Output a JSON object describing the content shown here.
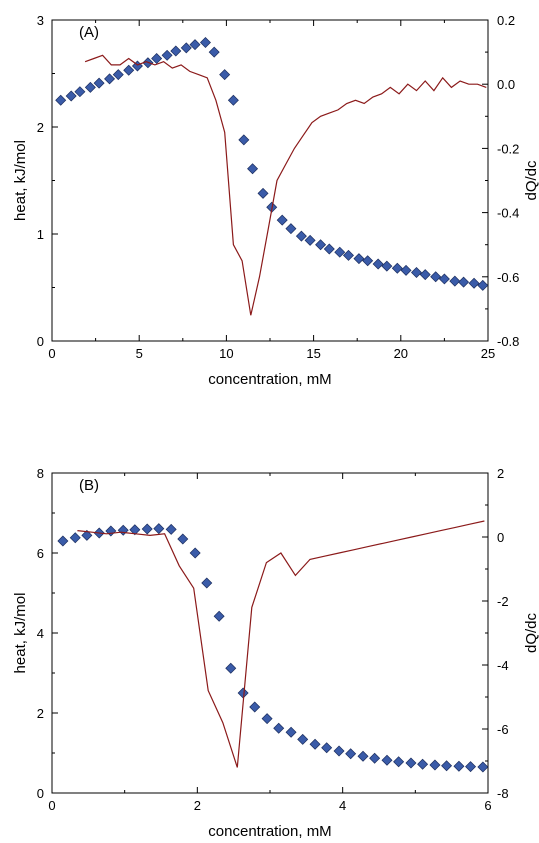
{
  "colors": {
    "marker": "#3a5ba8",
    "marker_edge": "#1c2e5e",
    "line": "#8b1a1a",
    "axis": "#000000"
  },
  "chart_data": [
    {
      "type": "scatter",
      "panel_label": "(A)",
      "xlabel": "concentration, mM",
      "ylabel": "heat, kJ/mol",
      "y2label": "dQ/dc",
      "xlim": [
        0,
        25
      ],
      "ylim": [
        0,
        3
      ],
      "y2lim": [
        -0.8,
        0.2
      ],
      "xticks": [
        "0",
        "5",
        "10",
        "15",
        "20",
        "25"
      ],
      "yticks": [
        "0",
        "1",
        "2",
        "3"
      ],
      "y2ticks": [
        "-0.8",
        "-0.6",
        "-0.4",
        "-0.2",
        "0.0",
        "0.2"
      ],
      "series": [
        {
          "kind": "markers",
          "axis": "left",
          "x": [
            0.5,
            1.1,
            1.6,
            2.2,
            2.7,
            3.3,
            3.8,
            4.4,
            4.9,
            5.5,
            6.0,
            6.6,
            7.1,
            7.7,
            8.2,
            8.8,
            9.3,
            9.9,
            10.4,
            11.0,
            11.5,
            12.1,
            12.6,
            13.2,
            13.7,
            14.3,
            14.8,
            15.4,
            15.9,
            16.5,
            17.0,
            17.6,
            18.1,
            18.7,
            19.2,
            19.8,
            20.3,
            20.9,
            21.4,
            22.0,
            22.5,
            23.1,
            23.6,
            24.2,
            24.7
          ],
          "y": [
            2.25,
            2.29,
            2.33,
            2.37,
            2.41,
            2.45,
            2.49,
            2.53,
            2.57,
            2.6,
            2.64,
            2.67,
            2.71,
            2.74,
            2.77,
            2.79,
            2.7,
            2.49,
            2.25,
            1.88,
            1.61,
            1.38,
            1.25,
            1.13,
            1.05,
            0.98,
            0.94,
            0.9,
            0.86,
            0.83,
            0.8,
            0.77,
            0.75,
            0.72,
            0.7,
            0.68,
            0.66,
            0.64,
            0.62,
            0.6,
            0.58,
            0.56,
            0.55,
            0.54,
            0.52
          ]
        },
        {
          "kind": "line",
          "axis": "right",
          "x": [
            1.9,
            2.4,
            2.9,
            3.4,
            3.9,
            4.4,
            4.9,
            5.4,
            5.9,
            6.4,
            6.9,
            7.4,
            7.9,
            8.4,
            8.9,
            9.4,
            9.9,
            10.4,
            10.9,
            11.4,
            11.9,
            12.4,
            12.9,
            13.4,
            13.9,
            14.4,
            14.9,
            15.4,
            15.9,
            16.4,
            16.9,
            17.4,
            17.9,
            18.4,
            18.9,
            19.4,
            19.9,
            20.4,
            20.9,
            21.4,
            21.9,
            22.4,
            22.9,
            23.4,
            23.9,
            24.4,
            24.9
          ],
          "y": [
            0.07,
            0.08,
            0.09,
            0.06,
            0.06,
            0.08,
            0.06,
            0.07,
            0.06,
            0.07,
            0.05,
            0.06,
            0.04,
            0.03,
            0.02,
            -0.05,
            -0.15,
            -0.5,
            -0.55,
            -0.72,
            -0.6,
            -0.45,
            -0.3,
            -0.25,
            -0.2,
            -0.16,
            -0.12,
            -0.1,
            -0.09,
            -0.08,
            -0.06,
            -0.05,
            -0.06,
            -0.04,
            -0.03,
            -0.01,
            -0.03,
            0.0,
            -0.02,
            0.01,
            -0.02,
            0.02,
            -0.01,
            0.01,
            0.0,
            0.0,
            -0.01
          ]
        }
      ]
    },
    {
      "type": "scatter",
      "panel_label": "(B)",
      "xlabel": "concentration, mM",
      "ylabel": "heat, kJ/mol",
      "y2label": "dQ/dc",
      "xlim": [
        0,
        6
      ],
      "ylim": [
        0,
        8
      ],
      "y2lim": [
        -8,
        2
      ],
      "xticks": [
        "0",
        "2",
        "4",
        "6"
      ],
      "yticks": [
        "0",
        "2",
        "4",
        "6",
        "8"
      ],
      "y2ticks": [
        "-8",
        "-6",
        "-4",
        "-2",
        "0",
        "2"
      ],
      "series": [
        {
          "kind": "markers",
          "axis": "left",
          "x": [
            0.15,
            0.32,
            0.48,
            0.65,
            0.81,
            0.98,
            1.14,
            1.31,
            1.47,
            1.64,
            1.8,
            1.97,
            2.13,
            2.3,
            2.46,
            2.63,
            2.79,
            2.96,
            3.12,
            3.29,
            3.45,
            3.62,
            3.78,
            3.95,
            4.11,
            4.28,
            4.44,
            4.61,
            4.77,
            4.94,
            5.1,
            5.27,
            5.43,
            5.6,
            5.76,
            5.93
          ],
          "y": [
            6.3,
            6.38,
            6.44,
            6.5,
            6.55,
            6.57,
            6.58,
            6.6,
            6.61,
            6.59,
            6.35,
            6.0,
            5.25,
            4.42,
            3.12,
            2.5,
            2.15,
            1.86,
            1.62,
            1.52,
            1.34,
            1.22,
            1.13,
            1.05,
            0.98,
            0.92,
            0.87,
            0.82,
            0.78,
            0.75,
            0.72,
            0.7,
            0.68,
            0.67,
            0.66,
            0.65
          ]
        },
        {
          "kind": "line",
          "axis": "right",
          "x": [
            0.35,
            0.55,
            0.75,
            0.95,
            1.15,
            1.35,
            1.55,
            1.75,
            1.95,
            2.15,
            2.35,
            2.55,
            2.75,
            2.95,
            3.15,
            3.35,
            3.55,
            3.75,
            3.95,
            4.15,
            4.35,
            4.55,
            4.75,
            4.95,
            5.15,
            5.35,
            5.55,
            5.75,
            5.95
          ],
          "y": [
            0.2,
            0.15,
            0.1,
            0.15,
            0.1,
            0.05,
            0.1,
            -0.9,
            -1.6,
            -4.8,
            -5.8,
            -7.2,
            -2.2,
            -0.8,
            -0.5,
            -1.2,
            -0.7,
            -0.6,
            -0.5,
            -0.4,
            -0.3,
            -0.2,
            -0.1,
            0.0,
            0.1,
            0.2,
            0.3,
            0.4,
            0.5
          ]
        }
      ]
    }
  ]
}
